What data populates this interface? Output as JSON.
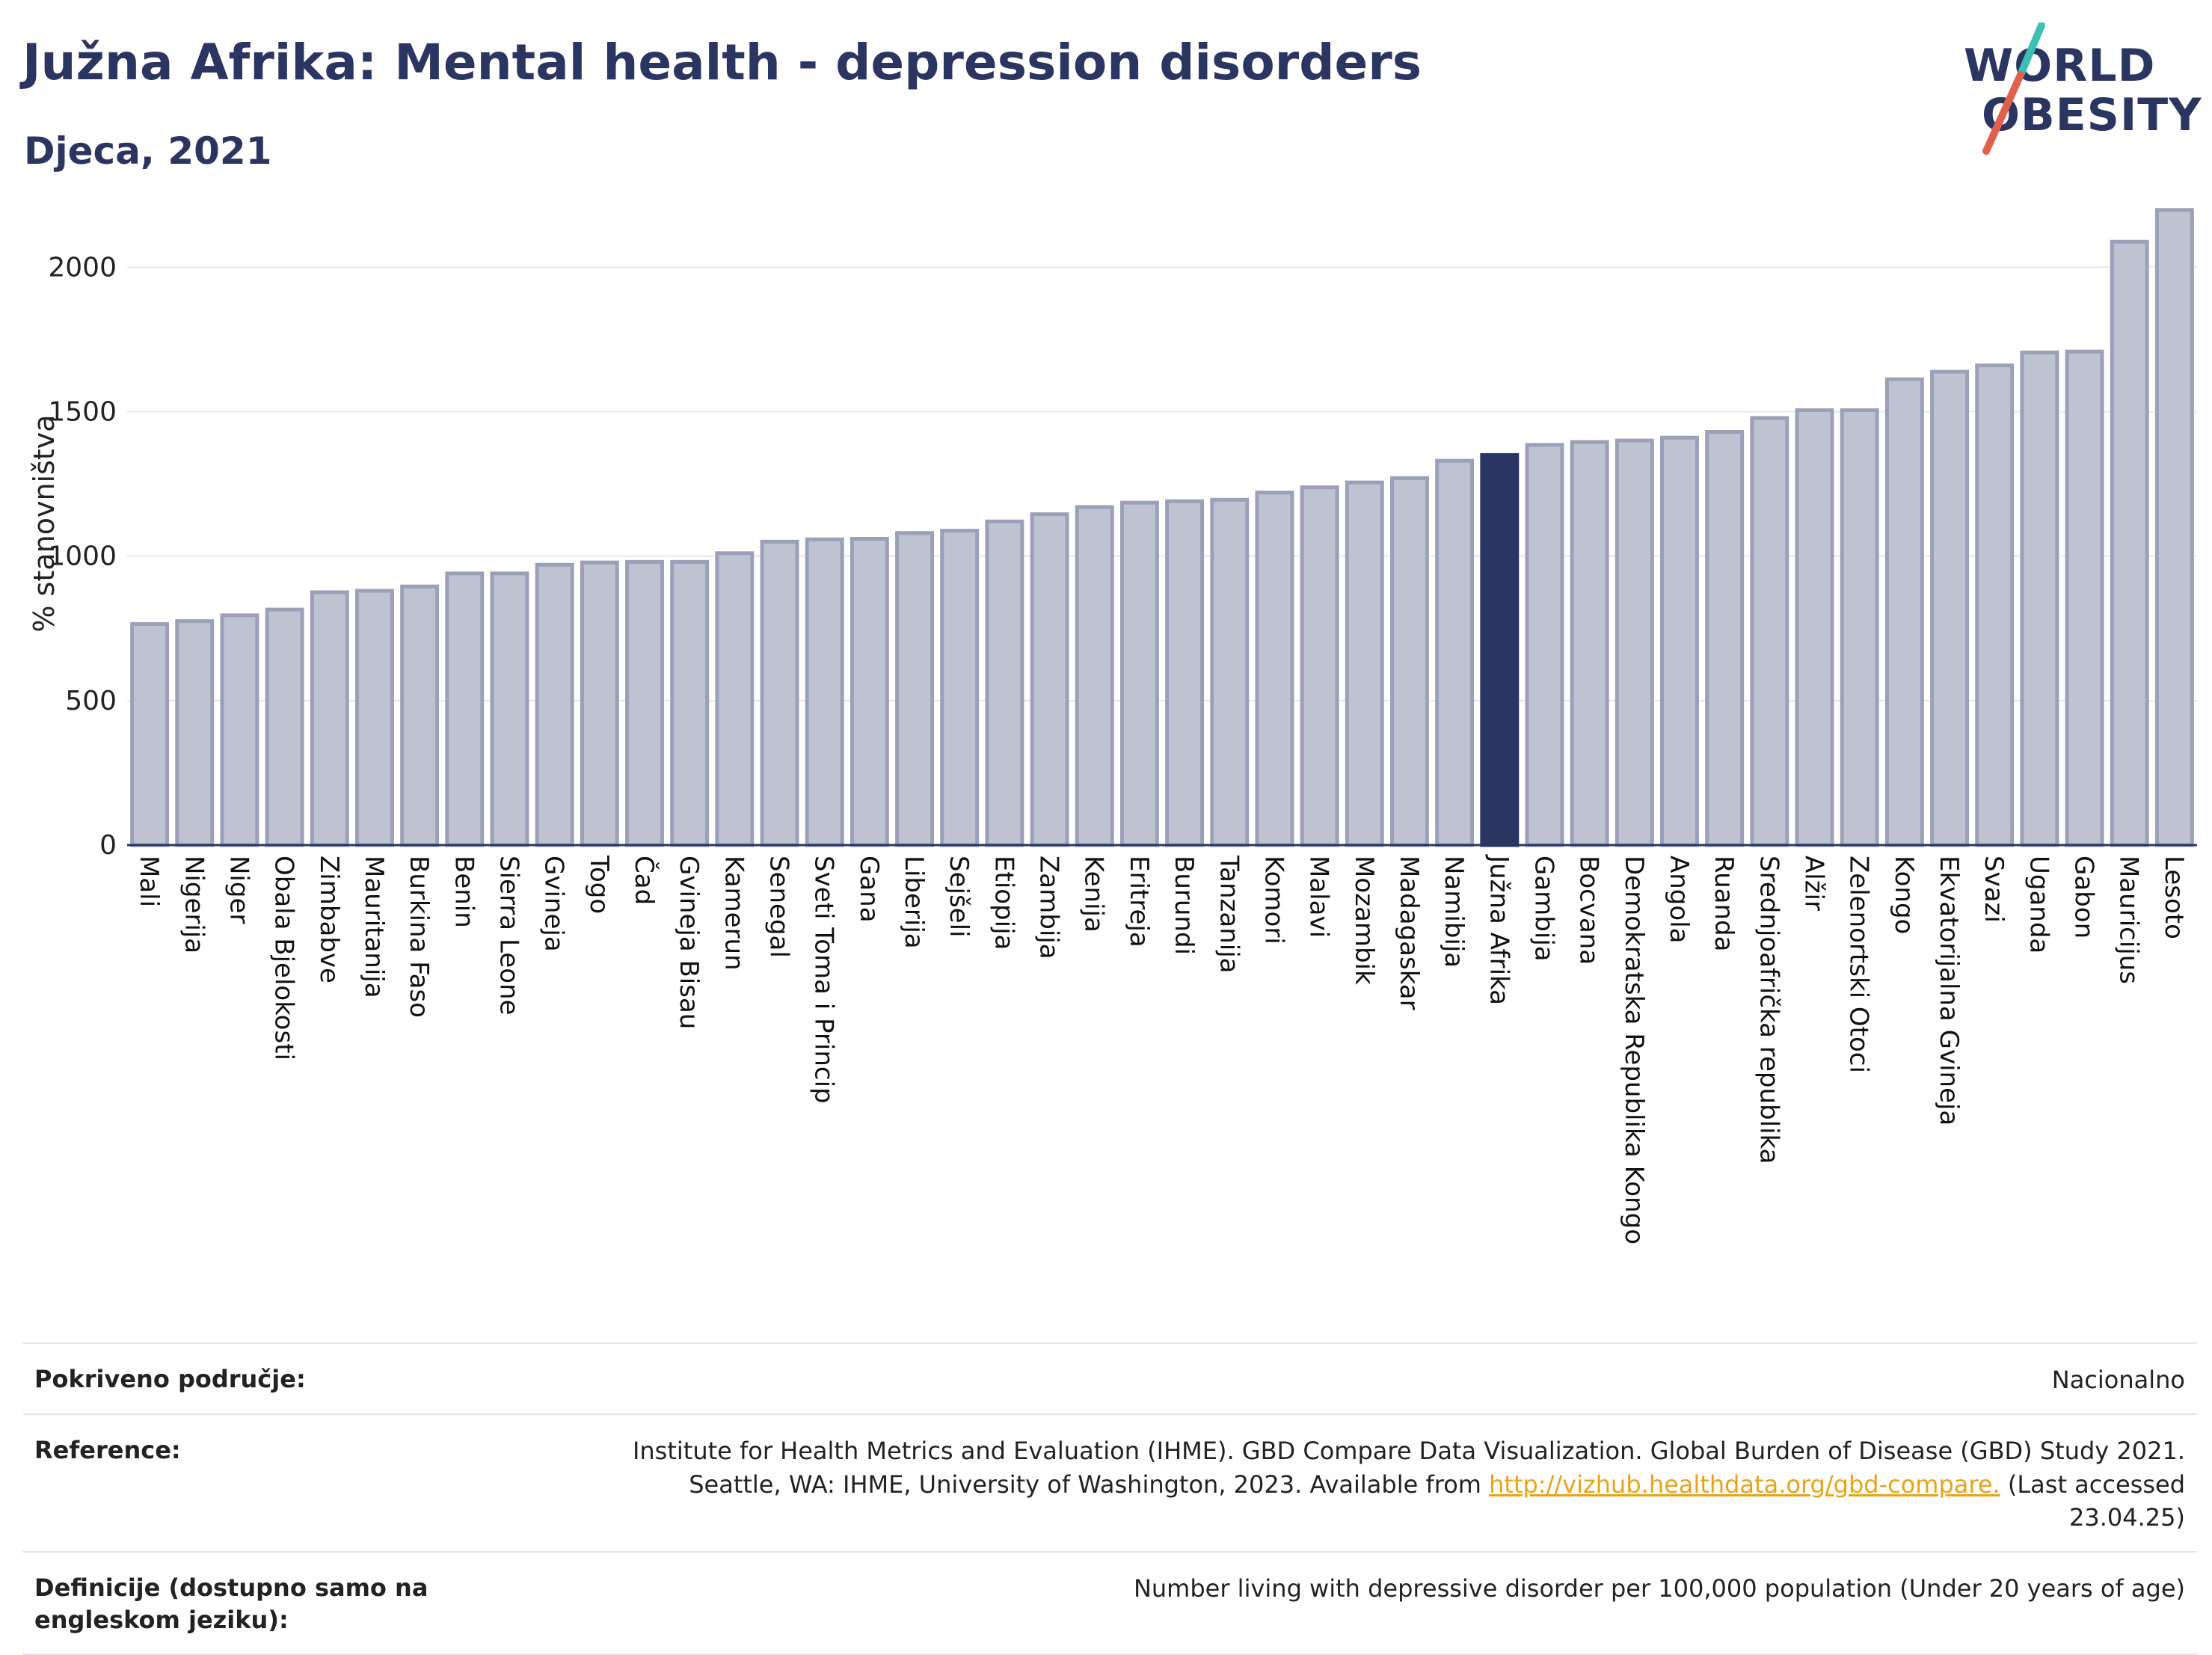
{
  "header": {
    "title": "Južna Afrika: Mental health - depression disorders",
    "subtitle": "Djeca, 2021"
  },
  "logo": {
    "line1": "WORLD",
    "line2": "OBESITY",
    "colors": {
      "text": "#2b3561",
      "slash_top": "#3cc0b4",
      "slash_bottom": "#e0604e"
    }
  },
  "chart_data": {
    "type": "bar",
    "title": "Južna Afrika: Mental health - depression disorders",
    "subtitle": "Djeca, 2021",
    "xlabel": "",
    "ylabel": "% stanovništva",
    "ylim": [
      0,
      2200
    ],
    "yticks": [
      0,
      500,
      1000,
      1500,
      2000
    ],
    "grid": true,
    "highlight": "Južna Afrika",
    "colors": {
      "bar": "#bfc3d1",
      "bar_edge": "#9aa0b8",
      "highlight": "#2b3561"
    },
    "categories": [
      "Mali",
      "Nigerija",
      "Niger",
      "Obala Bjelokosti",
      "Zimbabve",
      "Mauritanija",
      "Burkina Faso",
      "Benin",
      "Sierra Leone",
      "Gvineja",
      "Togo",
      "Čad",
      "Gvineja Bisau",
      "Kamerun",
      "Senegal",
      "Sveti Toma i Princip",
      "Gana",
      "Liberija",
      "Sejšeli",
      "Etiopija",
      "Zambija",
      "Kenija",
      "Eritreja",
      "Burundi",
      "Tanzanija",
      "Komori",
      "Malavi",
      "Mozambik",
      "Madagaskar",
      "Namibija",
      "Južna Afrika",
      "Gambija",
      "Bocvana",
      "Demokratska Republika Kongo",
      "Angola",
      "Ruanda",
      "Srednjoafrička republika",
      "Alžir",
      "Zelenortski Otoci",
      "Kongo",
      "Ekvatorijalna Gvineja",
      "Svazi",
      "Uganda",
      "Gabon",
      "Mauricijus",
      "Lesoto"
    ],
    "values": [
      765,
      775,
      795,
      815,
      875,
      880,
      895,
      940,
      940,
      970,
      978,
      980,
      980,
      1010,
      1050,
      1058,
      1060,
      1080,
      1088,
      1120,
      1145,
      1170,
      1185,
      1190,
      1195,
      1220,
      1238,
      1255,
      1270,
      1330,
      1350,
      1385,
      1395,
      1400,
      1410,
      1430,
      1478,
      1505,
      1505,
      1612,
      1638,
      1660,
      1705,
      1708,
      2088,
      2198
    ]
  },
  "info": {
    "coverage_label": "Pokriveno područje:",
    "coverage_value": "Nacionalno",
    "reference_label": "Reference:",
    "reference_line1": "Institute for Health Metrics and Evaluation (IHME). GBD Compare Data Visualization. Global Burden of Disease (GBD) Study 2021.",
    "reference_line2_pre": "Seattle, WA: IHME, University of Washington, 2023. Available from ",
    "reference_link": "http://vizhub.healthdata.org/gbd-compare.",
    "reference_line2_post": " (Last accessed 23.04.25)",
    "definition_label": "Definicije (dostupno samo na engleskom jeziku):",
    "definition_value": "Number living with depressive disorder per 100,000 population (Under 20 years of age)"
  }
}
